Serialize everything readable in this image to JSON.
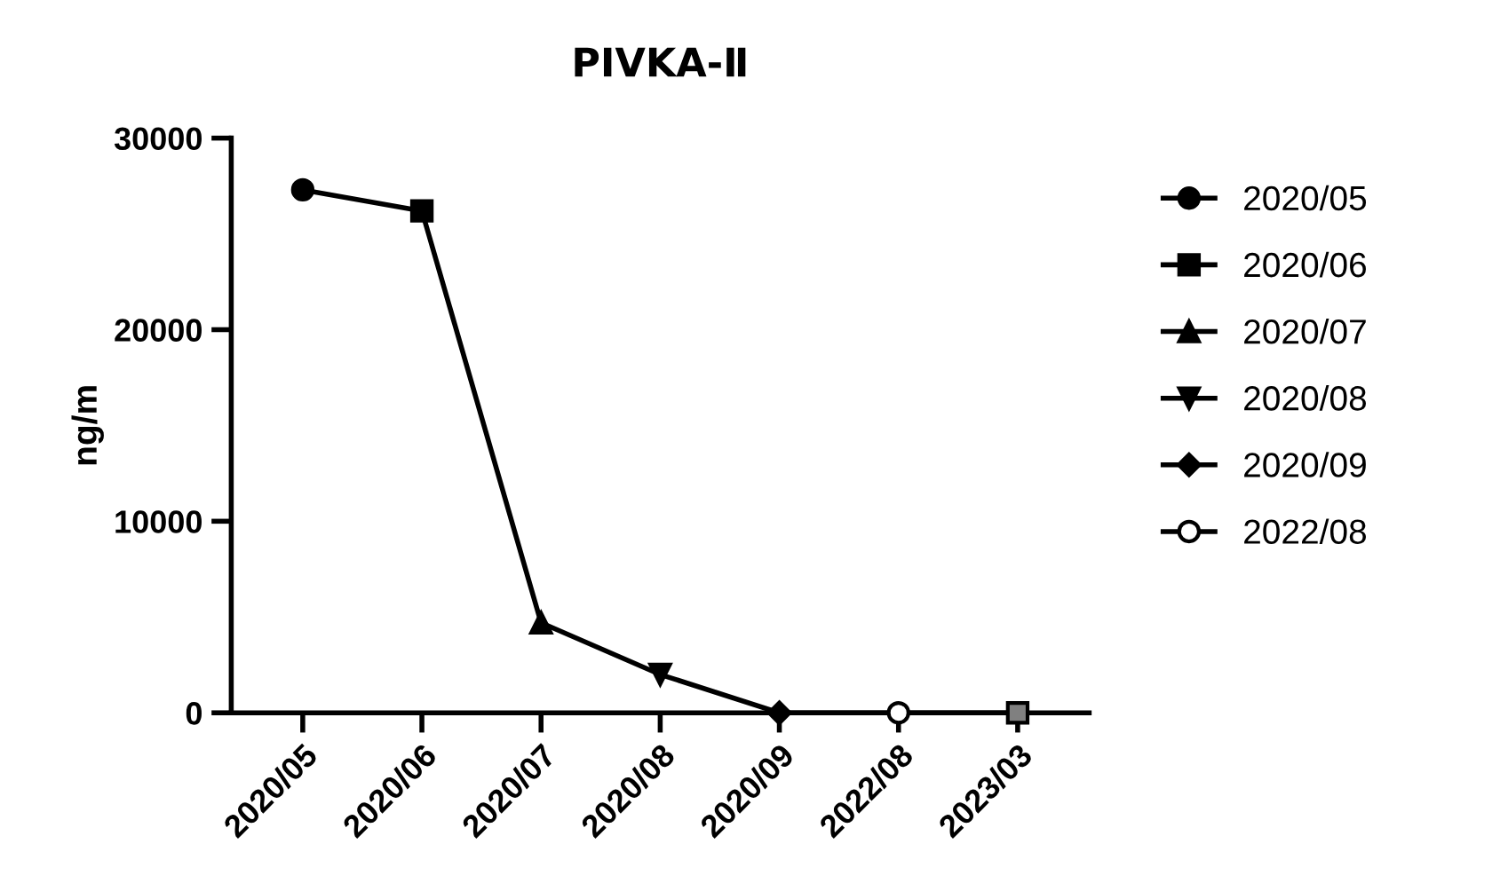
{
  "chart_data": {
    "type": "line",
    "title": "PIVKA-Ⅱ",
    "ylabel": "ng/m",
    "categories": [
      "2020/05",
      "2020/06",
      "2020/07",
      "2020/08",
      "2020/09",
      "2022/08",
      "2023/03"
    ],
    "ylim": [
      0,
      30000
    ],
    "yticks": [
      0,
      10000,
      20000,
      30000
    ],
    "grid": false,
    "legend": "right",
    "series": [
      {
        "color": "#000000",
        "marker": "none",
        "values": [
          27300,
          26200,
          4700,
          2000,
          0,
          0,
          0
        ]
      },
      {
        "type": "scatter",
        "name": "2020/05",
        "color": "#000000",
        "marker": "circle",
        "x": [
          "2020/05"
        ],
        "values": [
          27300
        ]
      },
      {
        "type": "scatter",
        "name": "2020/06",
        "color": "#000000",
        "marker": "square",
        "x": [
          "2020/06"
        ],
        "values": [
          26200
        ]
      },
      {
        "type": "scatter",
        "name": "2020/07",
        "color": "#000000",
        "marker": "triangle",
        "x": [
          "2020/07"
        ],
        "values": [
          4700
        ]
      },
      {
        "type": "scatter",
        "name": "2020/08",
        "color": "#000000",
        "marker": "triangle_down",
        "x": [
          "2020/08"
        ],
        "values": [
          2000
        ]
      },
      {
        "type": "scatter",
        "name": "2020/09",
        "color": "#000000",
        "marker": "diamond",
        "x": [
          "2020/09"
        ],
        "values": [
          0
        ]
      },
      {
        "type": "scatter",
        "name": "2022/08",
        "color": "#ffffff",
        "marker": "circle",
        "x": [
          "2022/08"
        ],
        "values": [
          0
        ]
      },
      {
        "type": "scatter",
        "color": "#808080",
        "marker": "square",
        "x": [
          "2023/03"
        ],
        "values": [
          0
        ]
      }
    ]
  }
}
